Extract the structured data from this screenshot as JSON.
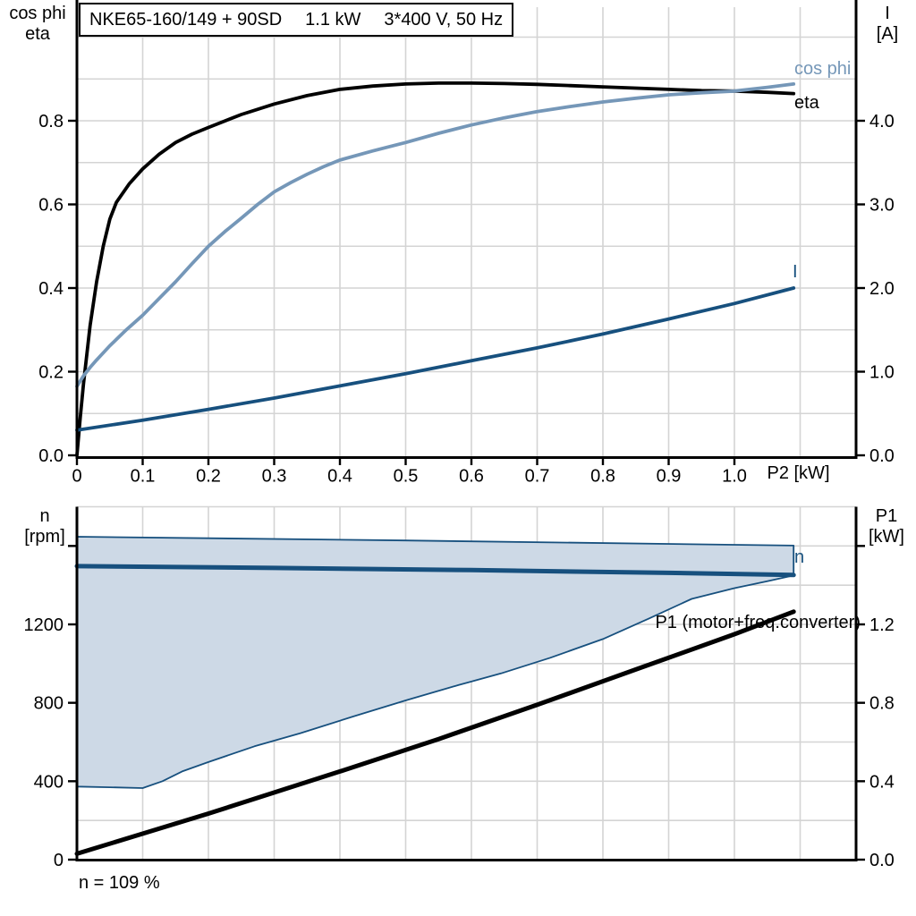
{
  "title": {
    "model": "NKE65-160/149 + 90SD",
    "power": "1.1 kW",
    "supply": "3*400 V, 50 Hz"
  },
  "footer": {
    "note": "n = 109 %"
  },
  "colors": {
    "axis": "#000000",
    "grid": "#d4d4d4",
    "cos_phi": "#7597b8",
    "navy": "#17507e",
    "region_fill": "#cdd9e6",
    "background": "#ffffff"
  },
  "chart_data": [
    {
      "type": "line",
      "title": "NKE65-160/149 + 90SD 1.1 kW 3*400 V, 50 Hz",
      "xlabel": "P2 [kW]",
      "ylabel_left_lines": [
        "cos phi",
        "eta"
      ],
      "ylabel_right_lines": [
        "I",
        "[A]"
      ],
      "xlim": [
        0,
        1.185
      ],
      "ylim_left": [
        0,
        1.072
      ],
      "ylim_right": [
        0,
        5.36
      ],
      "grid": true,
      "grid_x": [
        0.1,
        0.2,
        0.3,
        0.4,
        0.5,
        0.6,
        0.7,
        0.8,
        0.9,
        1.0,
        1.1
      ],
      "grid_y": [
        0.1,
        0.2,
        0.3,
        0.4,
        0.5,
        0.6,
        0.7,
        0.8,
        0.9,
        1.0
      ],
      "x_ticks": [
        [
          0,
          "0"
        ],
        [
          0.1,
          "0.1"
        ],
        [
          0.2,
          "0.2"
        ],
        [
          0.3,
          "0.3"
        ],
        [
          0.4,
          "0.4"
        ],
        [
          0.5,
          "0.5"
        ],
        [
          0.6,
          "0.6"
        ],
        [
          0.7,
          "0.7"
        ],
        [
          0.8,
          "0.8"
        ],
        [
          0.9,
          "0.9"
        ],
        [
          1.0,
          "1.0"
        ]
      ],
      "y_ticks_left": [
        [
          0,
          "0.0"
        ],
        [
          0.2,
          "0.2"
        ],
        [
          0.4,
          "0.4"
        ],
        [
          0.6,
          "0.6"
        ],
        [
          0.8,
          "0.8"
        ]
      ],
      "y_ticks_right": [
        [
          0,
          "0.0"
        ],
        [
          1,
          "1.0"
        ],
        [
          2,
          "2.0"
        ],
        [
          3,
          "3.0"
        ],
        [
          4,
          "4.0"
        ]
      ],
      "series": [
        {
          "name": "eta",
          "color": "#000000",
          "width": 3.8,
          "axis": "left",
          "points": [
            [
              0,
              0
            ],
            [
              0.005,
              0.09
            ],
            [
              0.01,
              0.17
            ],
            [
              0.02,
              0.31
            ],
            [
              0.03,
              0.415
            ],
            [
              0.04,
              0.5
            ],
            [
              0.05,
              0.565
            ],
            [
              0.06,
              0.605
            ],
            [
              0.08,
              0.65
            ],
            [
              0.1,
              0.685
            ],
            [
              0.125,
              0.72
            ],
            [
              0.15,
              0.748
            ],
            [
              0.175,
              0.768
            ],
            [
              0.2,
              0.784
            ],
            [
              0.25,
              0.815
            ],
            [
              0.3,
              0.84
            ],
            [
              0.35,
              0.86
            ],
            [
              0.4,
              0.875
            ],
            [
              0.45,
              0.883
            ],
            [
              0.5,
              0.888
            ],
            [
              0.55,
              0.89
            ],
            [
              0.6,
              0.89
            ],
            [
              0.65,
              0.889
            ],
            [
              0.7,
              0.887
            ],
            [
              0.75,
              0.884
            ],
            [
              0.8,
              0.881
            ],
            [
              0.85,
              0.878
            ],
            [
              0.9,
              0.875
            ],
            [
              0.95,
              0.872
            ],
            [
              1.0,
              0.871
            ],
            [
              1.05,
              0.868
            ],
            [
              1.09,
              0.865
            ]
          ]
        },
        {
          "name": "cos phi",
          "color": "#7597b8",
          "width": 3.8,
          "axis": "left",
          "points": [
            [
              0,
              0.165
            ],
            [
              0.01,
              0.19
            ],
            [
              0.02,
              0.21
            ],
            [
              0.03,
              0.228
            ],
            [
              0.05,
              0.262
            ],
            [
              0.075,
              0.3
            ],
            [
              0.1,
              0.335
            ],
            [
              0.125,
              0.375
            ],
            [
              0.15,
              0.415
            ],
            [
              0.175,
              0.458
            ],
            [
              0.2,
              0.5
            ],
            [
              0.225,
              0.535
            ],
            [
              0.25,
              0.567
            ],
            [
              0.275,
              0.6
            ],
            [
              0.3,
              0.63
            ],
            [
              0.325,
              0.652
            ],
            [
              0.35,
              0.672
            ],
            [
              0.375,
              0.69
            ],
            [
              0.4,
              0.706
            ],
            [
              0.45,
              0.728
            ],
            [
              0.5,
              0.748
            ],
            [
              0.55,
              0.77
            ],
            [
              0.6,
              0.79
            ],
            [
              0.65,
              0.807
            ],
            [
              0.7,
              0.822
            ],
            [
              0.75,
              0.834
            ],
            [
              0.8,
              0.845
            ],
            [
              0.85,
              0.854
            ],
            [
              0.9,
              0.862
            ],
            [
              0.95,
              0.867
            ],
            [
              1.0,
              0.871
            ],
            [
              1.05,
              0.88
            ],
            [
              1.09,
              0.888
            ]
          ]
        },
        {
          "name": "I",
          "color": "#17507e",
          "width": 3.8,
          "axis": "right",
          "points": [
            [
              0,
              0.3
            ],
            [
              0.1,
              0.42
            ],
            [
              0.2,
              0.55
            ],
            [
              0.3,
              0.685
            ],
            [
              0.4,
              0.83
            ],
            [
              0.5,
              0.975
            ],
            [
              0.6,
              1.13
            ],
            [
              0.7,
              1.285
            ],
            [
              0.8,
              1.45
            ],
            [
              0.9,
              1.63
            ],
            [
              1.0,
              1.815
            ],
            [
              1.09,
              2.0
            ]
          ]
        }
      ]
    },
    {
      "type": "line+area",
      "xlabel": "",
      "ylabel_left_lines": [
        "n",
        "[rpm]"
      ],
      "ylabel_right_lines": [
        "P1",
        "[kW]"
      ],
      "xlim": [
        0,
        1.185
      ],
      "ylim_left": [
        0,
        1800
      ],
      "ylim_right": [
        0,
        1.8
      ],
      "grid": true,
      "grid_x": [
        0.1,
        0.2,
        0.3,
        0.4,
        0.5,
        0.6,
        0.7,
        0.8,
        0.9,
        1.0,
        1.1
      ],
      "grid_y": [
        200,
        400,
        600,
        800,
        1000,
        1200,
        1400,
        1600,
        1800
      ],
      "x_ticks": [],
      "y_ticks_left": [
        [
          0,
          "0"
        ],
        [
          400,
          "400"
        ],
        [
          800,
          "800"
        ],
        [
          1200,
          "1200"
        ],
        [
          1600,
          ""
        ]
      ],
      "y_ticks_right": [
        [
          0,
          "0.0"
        ],
        [
          0.4,
          "0.4"
        ],
        [
          0.8,
          "0.8"
        ],
        [
          1.2,
          "1.2"
        ],
        [
          1.6,
          ""
        ]
      ],
      "operating_region": {
        "fill": "#cdd9e6",
        "edge": "#17507e",
        "edge_width": 1.8,
        "upper": [
          [
            0,
            1647
          ],
          [
            0.5,
            1628
          ],
          [
            1.09,
            1602
          ]
        ],
        "lower": [
          [
            0,
            373
          ],
          [
            0.05,
            369
          ],
          [
            0.1,
            365
          ],
          [
            0.13,
            400
          ],
          [
            0.16,
            450
          ],
          [
            0.2,
            498
          ],
          [
            0.27,
            578
          ],
          [
            0.34,
            645
          ],
          [
            0.42,
            730
          ],
          [
            0.5,
            812
          ],
          [
            0.58,
            890
          ],
          [
            0.645,
            950
          ],
          [
            0.72,
            1030
          ],
          [
            0.8,
            1125
          ],
          [
            0.87,
            1230
          ],
          [
            0.935,
            1330
          ],
          [
            1.0,
            1385
          ],
          [
            1.05,
            1420
          ],
          [
            1.09,
            1450
          ]
        ]
      },
      "series": [
        {
          "name": "n",
          "color": "#17507e",
          "width": 5,
          "axis": "left",
          "points": [
            [
              0,
              1497
            ],
            [
              0.3,
              1488
            ],
            [
              0.6,
              1477
            ],
            [
              0.9,
              1463
            ],
            [
              1.09,
              1452
            ]
          ]
        },
        {
          "name": "P1 (motor+freq.converter)",
          "color": "#000000",
          "width": 5,
          "axis": "right",
          "points": [
            [
              0,
              0.03
            ],
            [
              0.2,
              0.235
            ],
            [
              0.4,
              0.45
            ],
            [
              0.55,
              0.615
            ],
            [
              0.7,
              0.79
            ],
            [
              0.85,
              0.97
            ],
            [
              1.0,
              1.15
            ],
            [
              1.09,
              1.265
            ]
          ]
        }
      ],
      "annotation": "n = 109 %"
    }
  ]
}
